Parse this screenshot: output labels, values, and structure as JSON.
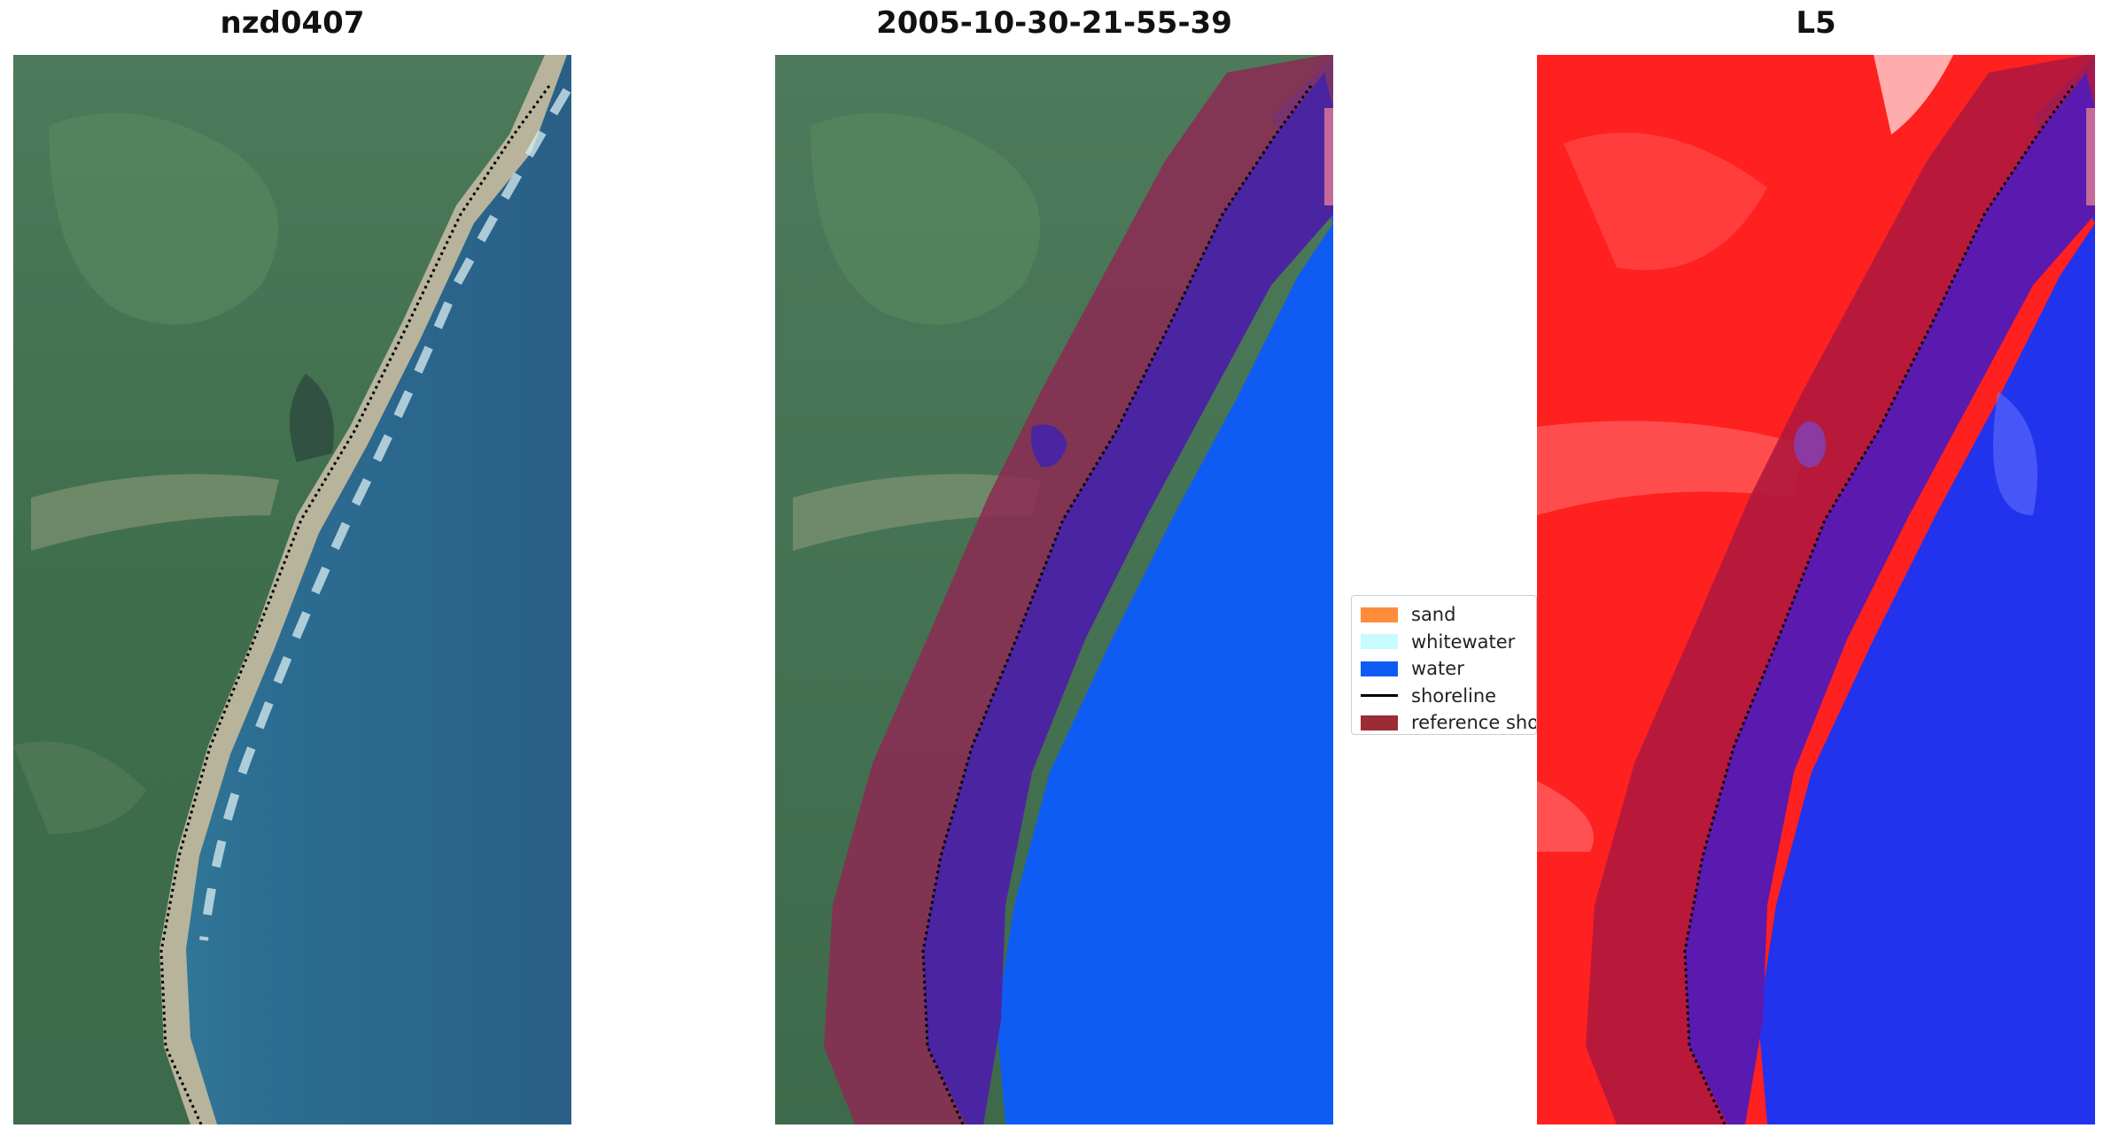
{
  "panels": [
    {
      "title": "nzd0407"
    },
    {
      "title": "2005-10-30-21-55-39"
    },
    {
      "title": "L5"
    }
  ],
  "legend": {
    "items": [
      {
        "label": "sand",
        "color": "#ff8c3a",
        "kind": "patch"
      },
      {
        "label": "whitewater",
        "color": "#c8fbfb",
        "kind": "patch"
      },
      {
        "label": "water",
        "color": "#0f5cf5",
        "kind": "patch"
      },
      {
        "label": "shoreline",
        "color": "#000000",
        "kind": "line"
      },
      {
        "label": "reference shoreline buffer",
        "color": "#9b2b35",
        "kind": "patch"
      }
    ]
  },
  "colors": {
    "land_green": "#3f6e4e",
    "sea_blue": "#2f6e8f",
    "water_class": "#0f5cf5",
    "buffer": "#8c2a52",
    "index_land": "#ff1a1a",
    "index_water": "#2233ee"
  }
}
